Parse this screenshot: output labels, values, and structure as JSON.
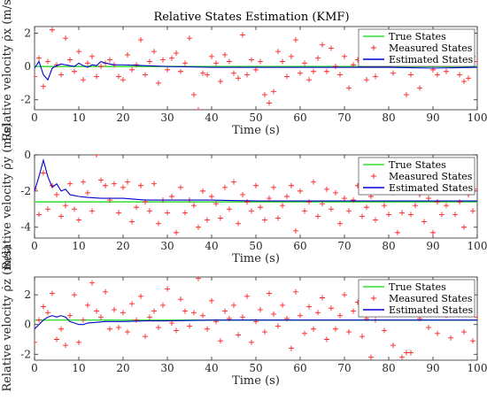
{
  "title": "Relative States Estimation (KMF)",
  "colors": {
    "true": "#33dd33",
    "measured": "#ff2020",
    "estimated": "#0000cc"
  },
  "chart_data": [
    {
      "type": "line",
      "xlabel": "Time (s)",
      "ylabel": "Relative velocity ρ̇x (m/s)",
      "xlim": [
        0,
        100
      ],
      "ylim": [
        -2.6,
        2.4
      ],
      "xticks": [
        0,
        10,
        20,
        30,
        40,
        50,
        60,
        70,
        80,
        90,
        100
      ],
      "yticks": [
        -2,
        0,
        2
      ],
      "grid": false,
      "legend": "top-right",
      "legend_entries": [
        "True States",
        "Measured States",
        "Estimated States"
      ],
      "series": [
        {
          "name": "True States",
          "kind": "line",
          "x": [
            0,
            100
          ],
          "y": [
            0,
            0
          ]
        },
        {
          "name": "Measured States",
          "kind": "markers",
          "x": [
            0,
            1,
            2,
            3,
            4,
            5,
            6,
            7,
            8,
            9,
            10,
            11,
            12,
            13,
            14,
            15,
            16,
            17,
            18,
            19,
            20,
            21,
            22,
            23,
            24,
            25,
            26,
            27,
            28,
            29,
            30,
            31,
            32,
            33,
            34,
            35,
            36,
            37,
            38,
            39,
            40,
            41,
            42,
            43,
            44,
            45,
            46,
            47,
            48,
            49,
            50,
            51,
            52,
            53,
            54,
            55,
            56,
            57,
            58,
            59,
            60,
            61,
            62,
            63,
            64,
            65,
            66,
            67,
            68,
            69,
            70,
            71,
            72,
            73,
            74,
            75,
            76,
            77,
            78,
            79,
            80,
            81,
            82,
            83,
            84,
            85,
            86,
            87,
            88,
            89,
            90,
            91,
            92,
            93,
            94,
            95,
            96,
            97,
            98,
            99,
            100
          ],
          "y": [
            -0.6,
            0.5,
            -1.2,
            0.3,
            2.2,
            0.1,
            -0.5,
            1.7,
            0.4,
            -0.3,
            0.9,
            -0.8,
            0.2,
            0.6,
            -0.6,
            0.0,
            0.2,
            0.4,
            0.1,
            -0.6,
            -0.8,
            0.7,
            -0.2,
            0.1,
            1.6,
            -0.5,
            0.3,
            0.9,
            -1.0,
            0.4,
            -0.2,
            0.5,
            0.8,
            -0.3,
            0.2,
            1.7,
            -1.7,
            -2.6,
            -0.4,
            -0.5,
            0.6,
            0.2,
            -0.9,
            0.7,
            0.3,
            -0.4,
            -0.7,
            1.9,
            -0.5,
            0.4,
            -0.2,
            0.3,
            -1.7,
            -2.2,
            -1.5,
            0.9,
            0.3,
            -0.6,
            0.6,
            1.6,
            -0.4,
            0.2,
            -0.8,
            -0.3,
            0.5,
            1.3,
            -0.3,
            1.1,
            0.0,
            -0.5,
            0.6,
            -1.3,
            0.1,
            0.4,
            0.6,
            -0.8,
            0.3,
            -0.6,
            1.4,
            0.5,
            0.3,
            -0.4,
            0.2,
            0.7,
            -1.7,
            -0.5,
            0.3,
            -1.3,
            0.4,
            0.9,
            -0.2,
            -0.5,
            1.8,
            -0.3,
            0.4,
            0.7,
            -0.5,
            -0.9,
            -0.7,
            0.6,
            0.3
          ]
        },
        {
          "name": "Estimated States",
          "kind": "line",
          "x": [
            0,
            1,
            2,
            3,
            4,
            5,
            6,
            7,
            8,
            9,
            10,
            11,
            12,
            13,
            14,
            15,
            16,
            17,
            18,
            20,
            25,
            30,
            40,
            50,
            60,
            70,
            80,
            90,
            100
          ],
          "y": [
            -0.1,
            0.3,
            -0.5,
            -0.8,
            -0.1,
            0.05,
            0.15,
            0.1,
            0.05,
            0.0,
            0.2,
            0.05,
            -0.05,
            0.1,
            0.05,
            0.3,
            0.2,
            0.15,
            0.1,
            0.1,
            0.05,
            0.0,
            -0.05,
            -0.05,
            -0.05,
            -0.05,
            -0.05,
            -0.1,
            -0.05
          ]
        }
      ]
    },
    {
      "type": "line",
      "xlabel": "Time (s)",
      "ylabel": "Relative velocity ρ̇y (m/s)",
      "xlim": [
        0,
        100
      ],
      "ylim": [
        -4.6,
        0
      ],
      "xticks": [
        0,
        10,
        20,
        30,
        40,
        50,
        60,
        70,
        80,
        90,
        100
      ],
      "yticks": [
        -4,
        -2,
        0
      ],
      "grid": false,
      "legend": "top-right",
      "legend_entries": [
        "True States",
        "Measured States",
        "Estimated States"
      ],
      "series": [
        {
          "name": "True States",
          "kind": "line",
          "x": [
            0,
            100
          ],
          "y": [
            -2.6,
            -2.6
          ]
        },
        {
          "name": "Measured States",
          "kind": "markers",
          "x": [
            0,
            1,
            2,
            3,
            4,
            5,
            6,
            7,
            8,
            9,
            10,
            11,
            12,
            13,
            14,
            15,
            16,
            17,
            18,
            19,
            20,
            21,
            22,
            23,
            24,
            25,
            26,
            27,
            28,
            29,
            30,
            31,
            32,
            33,
            34,
            35,
            36,
            37,
            38,
            39,
            40,
            41,
            42,
            43,
            44,
            45,
            46,
            47,
            48,
            49,
            50,
            51,
            52,
            53,
            54,
            55,
            56,
            57,
            58,
            59,
            60,
            61,
            62,
            63,
            64,
            65,
            66,
            67,
            68,
            69,
            70,
            71,
            72,
            73,
            74,
            75,
            76,
            77,
            78,
            79,
            80,
            81,
            82,
            83,
            84,
            85,
            86,
            87,
            88,
            89,
            90,
            91,
            92,
            93,
            94,
            95,
            96,
            97,
            98,
            99,
            100
          ],
          "y": [
            -1.9,
            -3.3,
            -1.0,
            -3.0,
            -1.7,
            -2.2,
            -3.4,
            -2.8,
            -1.6,
            -3.0,
            -3.6,
            -1.5,
            -2.1,
            -3.1,
            0.0,
            -1.4,
            -1.7,
            -2.5,
            -1.6,
            -3.2,
            -1.8,
            -1.5,
            -3.7,
            -2.9,
            -1.7,
            -2.6,
            -3.1,
            -1.6,
            -3.8,
            -2.5,
            -3.2,
            -2.3,
            -4.3,
            -1.8,
            -3.2,
            -2.5,
            -2.8,
            -4.0,
            -2.0,
            -3.6,
            -2.3,
            -2.7,
            -3.5,
            -1.8,
            -3.0,
            -1.5,
            -3.8,
            -2.2,
            -2.6,
            -3.1,
            -1.7,
            -2.9,
            -3.6,
            -2.4,
            -1.8,
            -3.5,
            -2.8,
            -2.3,
            -1.7,
            -4.2,
            -2.0,
            -3.1,
            -2.6,
            -1.5,
            -3.4,
            -2.7,
            -1.9,
            -3.0,
            -2.1,
            -3.8,
            -2.4,
            -3.1,
            -2.5,
            -1.7,
            -3.4,
            -2.9,
            -2.3,
            -3.6,
            -1.9,
            -2.8,
            -3.3,
            -2.1,
            -4.3,
            -3.2,
            -1.6,
            -3.3,
            -2.8,
            -2.2,
            -3.7,
            -2.4,
            -4.3,
            -2.6,
            -3.3,
            -2.8,
            -1.7,
            -3.3,
            -2.6,
            -4.0,
            -2.2,
            -3.1,
            -1.9
          ]
        },
        {
          "name": "Estimated States",
          "kind": "line",
          "x": [
            0,
            1,
            2,
            3,
            4,
            5,
            6,
            7,
            8,
            10,
            12,
            15,
            20,
            25,
            30,
            40,
            50,
            60,
            70,
            80,
            90,
            100
          ],
          "y": [
            -2.0,
            -1.2,
            -0.3,
            -1.2,
            -1.8,
            -1.6,
            -2.0,
            -1.9,
            -2.2,
            -2.3,
            -2.35,
            -2.4,
            -2.4,
            -2.5,
            -2.5,
            -2.5,
            -2.55,
            -2.55,
            -2.55,
            -2.55,
            -2.55,
            -2.55
          ]
        }
      ]
    },
    {
      "type": "line",
      "xlabel": "Time (s)",
      "ylabel": "Relative velocity ρ̇z (m/s)",
      "xlim": [
        0,
        100
      ],
      "ylim": [
        -2.4,
        3.2
      ],
      "xticks": [
        0,
        10,
        20,
        30,
        40,
        50,
        60,
        70,
        80,
        90,
        100
      ],
      "yticks": [
        -2,
        0,
        2
      ],
      "grid": false,
      "legend": "top-right",
      "legend_entries": [
        "True States",
        "Measured States",
        "Estimated States"
      ],
      "series": [
        {
          "name": "True States",
          "kind": "line",
          "x": [
            0,
            100
          ],
          "y": [
            0.3,
            0.3
          ]
        },
        {
          "name": "Measured States",
          "kind": "markers",
          "x": [
            0,
            1,
            2,
            3,
            4,
            5,
            6,
            7,
            8,
            9,
            10,
            11,
            12,
            13,
            14,
            15,
            16,
            17,
            18,
            19,
            20,
            21,
            22,
            23,
            24,
            25,
            26,
            27,
            28,
            29,
            30,
            31,
            32,
            33,
            34,
            35,
            36,
            37,
            38,
            39,
            40,
            41,
            42,
            43,
            44,
            45,
            46,
            47,
            48,
            49,
            50,
            51,
            52,
            53,
            54,
            55,
            56,
            57,
            58,
            59,
            60,
            61,
            62,
            63,
            64,
            65,
            66,
            67,
            68,
            69,
            70,
            71,
            72,
            73,
            74,
            75,
            76,
            77,
            78,
            79,
            80,
            81,
            82,
            83,
            84,
            85,
            86,
            87,
            88,
            89,
            90,
            91,
            92,
            93,
            94,
            95,
            96,
            97,
            98,
            99,
            100
          ],
          "y": [
            -1.2,
            0.3,
            1.2,
            0.8,
            2.1,
            -1.0,
            -0.3,
            -1.4,
            0.6,
            2.0,
            -1.2,
            0.3,
            1.3,
            2.8,
            0.9,
            0.5,
            2.2,
            -0.3,
            1.0,
            -0.2,
            0.8,
            -0.5,
            1.4,
            0.3,
            1.9,
            -0.8,
            0.5,
            0.9,
            -0.2,
            1.3,
            2.4,
            0.1,
            -0.4,
            1.7,
            0.9,
            -0.1,
            0.8,
            3.1,
            0.6,
            -0.3,
            1.6,
            0.2,
            -1.1,
            0.9,
            0.4,
            1.3,
            -0.7,
            0.5,
            1.9,
            -1.2,
            0.2,
            1.0,
            -0.5,
            2.1,
            0.7,
            -0.1,
            1.3,
            0.4,
            -1.6,
            2.2,
            0.6,
            -0.6,
            1.2,
            -0.3,
            0.8,
            1.8,
            -1.0,
            1.1,
            -0.3,
            0.6,
            2.0,
            -0.5,
            0.9,
            1.5,
            -0.8,
            0.4,
            -2.2,
            0.3,
            1.1,
            -0.4,
            0.7,
            -1.4,
            1.2,
            -2.2,
            -1.9,
            -1.9,
            1.8,
            0.4,
            1.4,
            -0.2,
            2.0,
            -0.6,
            1.0,
            0.6,
            -0.9,
            1.3,
            1.1,
            -0.5,
            0.7,
            -1.1,
            0.5
          ]
        },
        {
          "name": "Estimated States",
          "kind": "line",
          "x": [
            0,
            1,
            2,
            3,
            4,
            5,
            6,
            7,
            8,
            9,
            10,
            11,
            12,
            14,
            16,
            18,
            20,
            25,
            30,
            40,
            50,
            60,
            70,
            80,
            90,
            100
          ],
          "y": [
            -0.3,
            0.0,
            0.3,
            0.5,
            0.6,
            0.5,
            0.6,
            0.5,
            0.2,
            0.1,
            0.0,
            0.0,
            0.1,
            0.15,
            0.2,
            0.2,
            0.2,
            0.25,
            0.25,
            0.3,
            0.3,
            0.3,
            0.3,
            0.3,
            0.3,
            0.3
          ]
        }
      ]
    }
  ]
}
